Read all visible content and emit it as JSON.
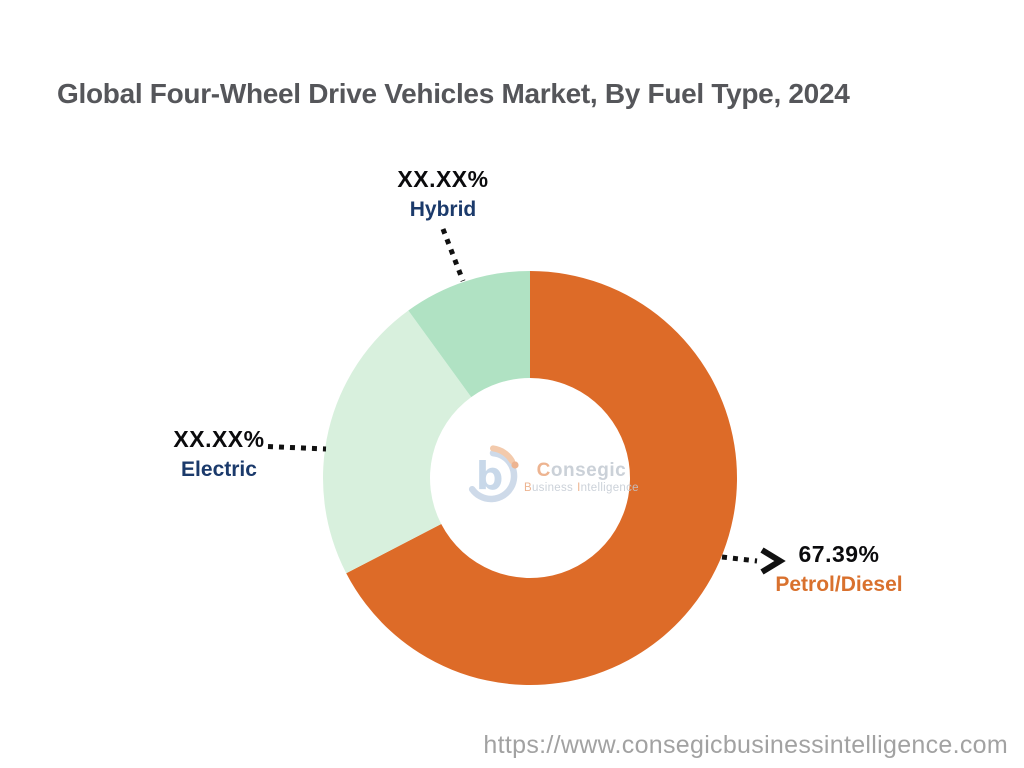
{
  "header": {
    "title": "Global Four-Wheel Drive Vehicles Market, By Fuel Type, 2024",
    "title_color": "#55565a"
  },
  "chart_data": {
    "type": "pie",
    "subtype": "donut",
    "title": "Global Four-Wheel Drive Vehicles Market, By Fuel Type, 2024",
    "start_angle_deg": 0,
    "direction": "clockwise",
    "slices": [
      {
        "label": "Petrol/Diesel",
        "value": 67.39,
        "display_value": "67.39%",
        "color": "#DD6B28"
      },
      {
        "label": "Electric",
        "value": 22.61,
        "display_value": "XX.XX%",
        "color": "#D8F0DD"
      },
      {
        "label": "Hybrid",
        "value": 10.0,
        "display_value": "XX.XX%",
        "color": "#B0E2C3"
      }
    ],
    "legend_position": "callout-labels",
    "annotation_note": "Electric and Hybrid share percentages are masked as XX.XX% in the image"
  },
  "callouts": {
    "hybrid": {
      "value": "XX.XX%",
      "label": "Hybrid",
      "label_color": "#1b3a6b"
    },
    "electric": {
      "value": "XX.XX%",
      "label": "Electric",
      "label_color": "#1b3a6b"
    },
    "petrol": {
      "value": "67.39%",
      "label": "Petrol/Diesel",
      "label_color": "#d9712e"
    }
  },
  "watermark": {
    "brand_initial": "C",
    "brand_rest": "onsegic",
    "tagline_b": "B",
    "tagline_business_rest": "usiness",
    "tagline_i": "I",
    "tagline_intelligence_rest": "ntelligence",
    "accent_color": "#eba87e",
    "muted_color": "#c3cad3"
  },
  "footer": {
    "url": "https://www.consegicbusinessintelligence.com"
  }
}
